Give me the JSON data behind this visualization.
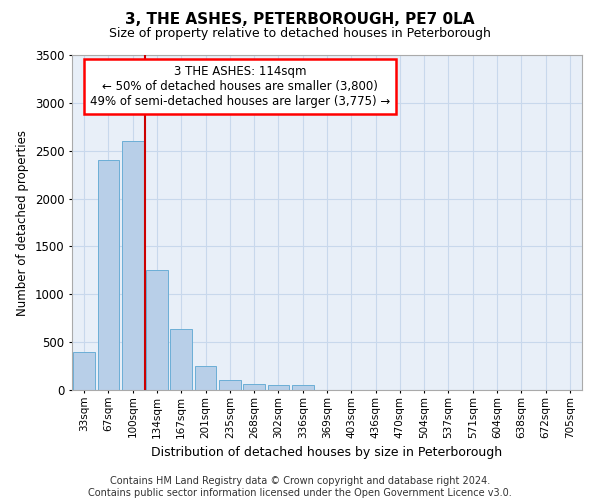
{
  "title": "3, THE ASHES, PETERBOROUGH, PE7 0LA",
  "subtitle": "Size of property relative to detached houses in Peterborough",
  "xlabel": "Distribution of detached houses by size in Peterborough",
  "ylabel": "Number of detached properties",
  "footer_line1": "Contains HM Land Registry data © Crown copyright and database right 2024.",
  "footer_line2": "Contains public sector information licensed under the Open Government Licence v3.0.",
  "annotation_line1": "3 THE ASHES: 114sqm",
  "annotation_line2": "← 50% of detached houses are smaller (3,800)",
  "annotation_line3": "49% of semi-detached houses are larger (3,775) →",
  "bar_color": "#b8cfe8",
  "bar_edge_color": "#6baed6",
  "grid_color": "#c8d8ec",
  "background_color": "#e8eff8",
  "vline_color": "#cc0000",
  "categories": [
    "33sqm",
    "67sqm",
    "100sqm",
    "134sqm",
    "167sqm",
    "201sqm",
    "235sqm",
    "268sqm",
    "302sqm",
    "336sqm",
    "369sqm",
    "403sqm",
    "436sqm",
    "470sqm",
    "504sqm",
    "537sqm",
    "571sqm",
    "604sqm",
    "638sqm",
    "672sqm",
    "705sqm"
  ],
  "values": [
    400,
    2400,
    2600,
    1250,
    640,
    250,
    100,
    65,
    55,
    50,
    0,
    0,
    0,
    0,
    0,
    0,
    0,
    0,
    0,
    0,
    0
  ],
  "ylim": [
    0,
    3500
  ],
  "yticks": [
    0,
    500,
    1000,
    1500,
    2000,
    2500,
    3000,
    3500
  ],
  "vline_x": 2.5
}
